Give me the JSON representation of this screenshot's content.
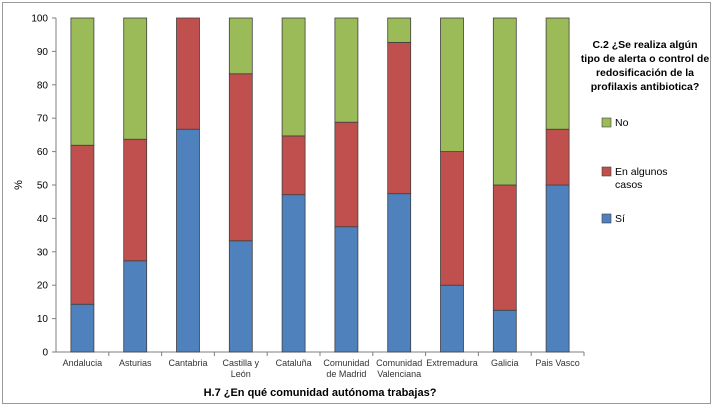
{
  "chart_data": {
    "type": "bar",
    "stacked": true,
    "percent_stacked": true,
    "categories": [
      [
        "Andalucia"
      ],
      [
        "Asturias"
      ],
      [
        "Cantabria"
      ],
      [
        "Castilla y",
        "León"
      ],
      [
        "Cataluña"
      ],
      [
        "Comunidad",
        "de Madrid"
      ],
      [
        "Comunidad",
        "Valenciana"
      ],
      [
        "Extremadura"
      ],
      [
        "Galicia"
      ],
      [
        "Pais Vasco"
      ]
    ],
    "series": [
      {
        "name": "Sí",
        "color": "#4f81bd",
        "values": [
          14.3,
          27.3,
          66.7,
          33.3,
          47.1,
          37.5,
          47.4,
          20.0,
          12.5,
          50.0
        ]
      },
      {
        "name": "En algunos casos",
        "color": "#c0504d",
        "values": [
          47.6,
          36.4,
          33.3,
          50.0,
          17.6,
          31.3,
          45.3,
          40.0,
          37.5,
          16.7
        ]
      },
      {
        "name": "No",
        "color": "#9bbb59",
        "values": [
          38.1,
          36.3,
          0.0,
          16.7,
          35.3,
          31.2,
          7.3,
          40.0,
          50.0,
          33.3
        ]
      }
    ],
    "ylabel": "%",
    "xlabel": "H.7 ¿En qué comunidad autónoma trabajas?",
    "ylim": [
      0,
      100
    ],
    "yticks": [
      0,
      10,
      20,
      30,
      40,
      50,
      60,
      70,
      80,
      90,
      100
    ],
    "legend": {
      "placement": "right",
      "title_lines": [
        "C.2 ¿Se realiza algún",
        "tipo de alerta o control de",
        "redosificación de la",
        "profilaxis antibiotica?"
      ],
      "entries": [
        {
          "label_lines": [
            "No"
          ],
          "color": "#9bbb59"
        },
        {
          "label_lines": [
            "En algunos",
            "casos"
          ],
          "color": "#c0504d"
        },
        {
          "label_lines": [
            "Sí"
          ],
          "color": "#4f81bd"
        }
      ]
    },
    "grid": false
  }
}
